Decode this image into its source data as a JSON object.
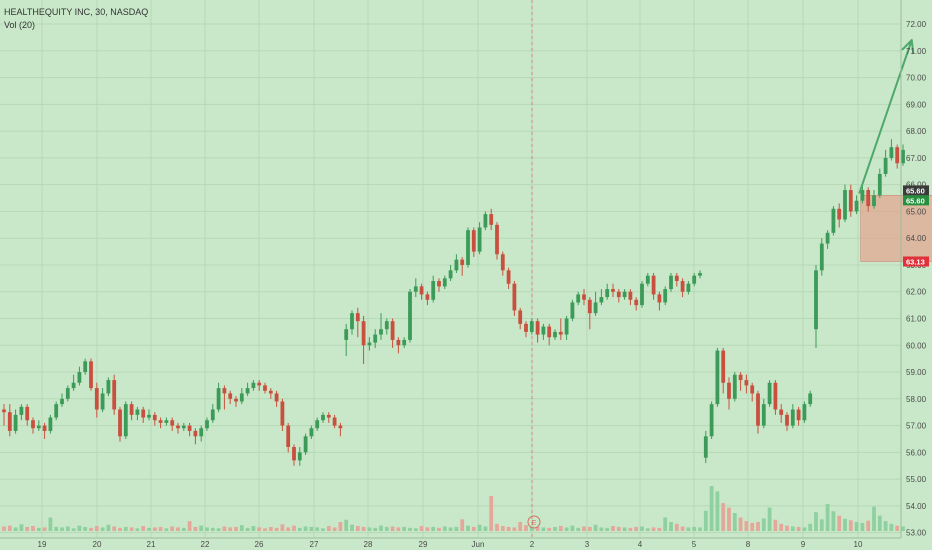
{
  "header": {
    "symbol_line": "HEALTHEQUITY INC, 30, NASDAQ",
    "volume_line": "Vol (20)"
  },
  "colors": {
    "background": "#c9e8c9",
    "up": "#3c9b58",
    "down": "#c9503e",
    "arrow": "#4fa86b",
    "box_fill": "#e0a890",
    "grid": "#b6d8b6",
    "axis_text": "#4a4a4a",
    "price_label_green": "#26903e",
    "price_label_red": "#e0313b",
    "price_label_dark": "#3a3a3a"
  },
  "chart_data": {
    "type": "candlestick",
    "y_range": [
      52.8,
      72.6
    ],
    "y_ticks": [
      "72.00",
      "71.00",
      "70.00",
      "69.00",
      "68.00",
      "67.00",
      "66.00",
      "65.00",
      "64.00",
      "63.00",
      "62.00",
      "61.00",
      "60.00",
      "59.00",
      "58.00",
      "57.00",
      "56.00",
      "55.00",
      "54.00",
      "53.00"
    ],
    "x_labels": [
      "19",
      "20",
      "21",
      "22",
      "26",
      "27",
      "28",
      "29",
      "Jun",
      "2",
      "3",
      "4",
      "5",
      "8",
      "9",
      "10"
    ],
    "price_labels": [
      {
        "text": "65.60",
        "value": 65.6,
        "style": "dark"
      },
      {
        "text": "65.60",
        "value": 65.6,
        "style": "green"
      },
      {
        "text": "63.13",
        "value": 63.13,
        "style": "red"
      }
    ],
    "event_marker": "E",
    "candles": [
      [
        57.6,
        57.5,
        57.0,
        57.8
      ],
      [
        57.5,
        56.8,
        56.6,
        57.8
      ],
      [
        56.8,
        57.4,
        56.7,
        57.6
      ],
      [
        57.4,
        57.7,
        57.2,
        57.8
      ],
      [
        57.7,
        57.2,
        57.0,
        57.8
      ],
      [
        57.2,
        56.9,
        56.7,
        57.3
      ],
      [
        56.9,
        57.0,
        56.8,
        57.2
      ],
      [
        57.0,
        56.8,
        56.5,
        57.1
      ],
      [
        56.8,
        57.3,
        56.7,
        57.4
      ],
      [
        57.3,
        57.8,
        57.2,
        57.9
      ],
      [
        57.8,
        58.0,
        57.7,
        58.2
      ],
      [
        58.0,
        58.4,
        57.9,
        58.5
      ],
      [
        58.4,
        58.6,
        58.3,
        58.9
      ],
      [
        58.6,
        59.0,
        58.5,
        59.2
      ],
      [
        59.0,
        59.4,
        58.9,
        59.5
      ],
      [
        59.4,
        58.4,
        58.3,
        59.5
      ],
      [
        58.4,
        57.6,
        57.3,
        58.6
      ],
      [
        57.6,
        58.2,
        57.5,
        58.4
      ],
      [
        58.2,
        58.7,
        58.1,
        58.8
      ],
      [
        58.7,
        57.6,
        57.4,
        58.9
      ],
      [
        57.6,
        56.6,
        56.4,
        57.7
      ],
      [
        56.6,
        57.8,
        56.5,
        57.9
      ],
      [
        57.8,
        57.4,
        57.2,
        57.9
      ],
      [
        57.4,
        57.6,
        57.2,
        57.7
      ],
      [
        57.6,
        57.3,
        57.1,
        57.7
      ],
      [
        57.3,
        57.4,
        57.2,
        57.6
      ],
      [
        57.4,
        57.2,
        57.0,
        57.5
      ],
      [
        57.2,
        57.1,
        56.9,
        57.3
      ],
      [
        57.1,
        57.2,
        57.0,
        57.3
      ],
      [
        57.2,
        57.0,
        56.8,
        57.3
      ],
      [
        57.0,
        56.9,
        56.7,
        57.1
      ],
      [
        56.9,
        57.0,
        56.8,
        57.1
      ],
      [
        57.0,
        56.8,
        56.6,
        57.1
      ],
      [
        56.8,
        56.6,
        56.3,
        56.9
      ],
      [
        56.6,
        56.9,
        56.4,
        57.0
      ],
      [
        56.9,
        57.2,
        56.8,
        57.3
      ],
      [
        57.2,
        57.6,
        57.1,
        57.8
      ],
      [
        57.6,
        58.4,
        57.5,
        58.6
      ],
      [
        58.4,
        58.2,
        57.6,
        58.5
      ],
      [
        58.2,
        58.0,
        57.8,
        58.3
      ],
      [
        58.0,
        57.9,
        57.7,
        58.1
      ],
      [
        57.9,
        58.2,
        57.8,
        58.4
      ],
      [
        58.2,
        58.4,
        58.1,
        58.6
      ],
      [
        58.4,
        58.6,
        58.3,
        58.7
      ],
      [
        58.6,
        58.5,
        58.3,
        58.7
      ],
      [
        58.5,
        58.3,
        58.2,
        58.6
      ],
      [
        58.3,
        58.2,
        58.0,
        58.4
      ],
      [
        58.2,
        57.9,
        57.7,
        58.3
      ],
      [
        57.9,
        57.0,
        56.8,
        58.0
      ],
      [
        57.0,
        56.2,
        56.0,
        57.1
      ],
      [
        56.2,
        55.7,
        55.5,
        56.3
      ],
      [
        55.7,
        56.0,
        55.5,
        56.2
      ],
      [
        56.0,
        56.6,
        55.9,
        56.7
      ],
      [
        56.6,
        56.9,
        56.5,
        57.0
      ],
      [
        56.9,
        57.2,
        56.8,
        57.3
      ],
      [
        57.2,
        57.4,
        57.1,
        57.5
      ],
      [
        57.4,
        57.3,
        57.1,
        57.5
      ],
      [
        57.3,
        57.0,
        56.9,
        57.4
      ],
      [
        57.0,
        56.9,
        56.6,
        57.1
      ],
      [
        60.2,
        60.6,
        59.6,
        60.8
      ],
      [
        60.6,
        61.2,
        60.4,
        61.3
      ],
      [
        61.2,
        60.9,
        60.3,
        61.4
      ],
      [
        60.9,
        60.0,
        59.3,
        61.1
      ],
      [
        60.0,
        60.1,
        59.8,
        60.3
      ],
      [
        60.1,
        60.4,
        59.9,
        60.6
      ],
      [
        60.4,
        60.6,
        60.2,
        61.2
      ],
      [
        60.6,
        60.9,
        60.4,
        61.0
      ],
      [
        60.9,
        60.2,
        59.9,
        61.0
      ],
      [
        60.2,
        60.0,
        59.7,
        60.3
      ],
      [
        60.0,
        60.2,
        59.9,
        60.3
      ],
      [
        60.2,
        62.0,
        60.1,
        62.1
      ],
      [
        62.0,
        62.2,
        61.8,
        62.5
      ],
      [
        62.2,
        61.9,
        61.7,
        62.3
      ],
      [
        61.9,
        61.7,
        61.5,
        62.0
      ],
      [
        61.7,
        62.4,
        61.6,
        62.6
      ],
      [
        62.4,
        62.2,
        62.0,
        62.5
      ],
      [
        62.2,
        62.5,
        62.1,
        62.6
      ],
      [
        62.5,
        62.8,
        62.4,
        63.0
      ],
      [
        62.8,
        63.2,
        62.7,
        63.4
      ],
      [
        63.2,
        63.0,
        62.6,
        63.3
      ],
      [
        63.0,
        64.3,
        62.9,
        64.4
      ],
      [
        64.3,
        63.5,
        63.3,
        64.4
      ],
      [
        63.5,
        64.4,
        63.4,
        64.6
      ],
      [
        64.4,
        64.9,
        64.3,
        65.0
      ],
      [
        64.9,
        64.5,
        64.3,
        65.1
      ],
      [
        64.5,
        63.4,
        63.2,
        64.6
      ],
      [
        63.4,
        62.8,
        62.6,
        63.5
      ],
      [
        62.8,
        62.3,
        62.1,
        62.9
      ],
      [
        62.3,
        61.3,
        61.1,
        62.4
      ],
      [
        61.3,
        60.8,
        60.6,
        61.4
      ],
      [
        60.8,
        60.5,
        60.3,
        60.9
      ],
      [
        60.5,
        60.9,
        60.4,
        61.0
      ],
      [
        60.9,
        60.4,
        60.1,
        61.0
      ],
      [
        60.4,
        60.7,
        60.2,
        60.8
      ],
      [
        60.7,
        60.3,
        60.0,
        60.8
      ],
      [
        60.3,
        60.5,
        60.2,
        60.6
      ],
      [
        60.5,
        60.4,
        60.2,
        61.0
      ],
      [
        60.4,
        61.0,
        60.2,
        61.1
      ],
      [
        61.0,
        61.6,
        60.9,
        61.7
      ],
      [
        61.6,
        61.9,
        61.5,
        62.0
      ],
      [
        61.9,
        61.7,
        61.5,
        62.1
      ],
      [
        61.7,
        61.2,
        60.6,
        61.8
      ],
      [
        61.2,
        61.6,
        61.1,
        62.0
      ],
      [
        61.6,
        61.8,
        61.5,
        62.1
      ],
      [
        61.8,
        62.1,
        61.7,
        62.3
      ],
      [
        62.1,
        62.0,
        61.8,
        62.3
      ],
      [
        62.0,
        61.8,
        61.6,
        62.1
      ],
      [
        61.8,
        62.0,
        61.7,
        62.1
      ],
      [
        62.0,
        61.7,
        61.5,
        62.1
      ],
      [
        61.7,
        61.5,
        61.3,
        61.8
      ],
      [
        61.5,
        62.3,
        61.4,
        62.4
      ],
      [
        62.3,
        62.6,
        62.2,
        62.7
      ],
      [
        62.6,
        61.9,
        61.7,
        62.7
      ],
      [
        61.9,
        61.6,
        61.3,
        62.0
      ],
      [
        61.6,
        62.1,
        61.5,
        62.2
      ],
      [
        62.1,
        62.6,
        62.0,
        62.7
      ],
      [
        62.6,
        62.4,
        62.2,
        62.7
      ],
      [
        62.4,
        62.0,
        61.8,
        62.5
      ],
      [
        62.0,
        62.3,
        61.9,
        62.4
      ],
      [
        62.3,
        62.6,
        62.2,
        62.7
      ],
      [
        62.6,
        62.7,
        62.5,
        62.8
      ],
      [
        55.8,
        56.6,
        55.6,
        56.8
      ],
      [
        56.6,
        57.8,
        56.5,
        57.9
      ],
      [
        57.8,
        59.8,
        57.7,
        59.9
      ],
      [
        59.8,
        58.6,
        58.2,
        59.9
      ],
      [
        58.6,
        58.0,
        57.6,
        58.8
      ],
      [
        58.0,
        58.9,
        57.9,
        59.0
      ],
      [
        58.9,
        58.7,
        58.3,
        59.0
      ],
      [
        58.7,
        58.5,
        58.2,
        58.9
      ],
      [
        58.5,
        58.2,
        57.9,
        58.6
      ],
      [
        58.2,
        57.0,
        56.7,
        58.3
      ],
      [
        57.0,
        57.8,
        56.9,
        58.0
      ],
      [
        57.8,
        58.6,
        57.7,
        58.7
      ],
      [
        58.6,
        57.6,
        57.4,
        58.7
      ],
      [
        57.6,
        57.4,
        57.1,
        57.8
      ],
      [
        57.4,
        57.0,
        56.8,
        57.5
      ],
      [
        57.0,
        57.6,
        56.9,
        57.8
      ],
      [
        57.6,
        57.2,
        57.0,
        57.7
      ],
      [
        57.2,
        57.8,
        57.1,
        57.9
      ],
      [
        57.8,
        58.2,
        57.7,
        58.3
      ],
      [
        60.6,
        62.8,
        59.9,
        63.0
      ],
      [
        62.8,
        63.8,
        62.6,
        64.0
      ],
      [
        63.8,
        64.2,
        63.6,
        64.3
      ],
      [
        64.2,
        65.1,
        64.1,
        65.2
      ],
      [
        65.1,
        64.7,
        64.4,
        65.3
      ],
      [
        64.7,
        65.8,
        64.6,
        66.0
      ],
      [
        65.8,
        65.0,
        64.8,
        66.0
      ],
      [
        65.0,
        65.4,
        64.9,
        65.6
      ],
      [
        65.4,
        65.8,
        65.3,
        66.0
      ],
      [
        65.8,
        65.2,
        65.0,
        65.9
      ],
      [
        65.2,
        65.6,
        65.1,
        65.8
      ],
      [
        65.6,
        66.4,
        65.5,
        66.6
      ],
      [
        66.4,
        67.0,
        66.3,
        67.3
      ],
      [
        67.0,
        67.4,
        66.9,
        67.7
      ],
      [
        67.4,
        66.8,
        66.6,
        67.5
      ],
      [
        66.8,
        67.3,
        66.7,
        67.5
      ]
    ],
    "volume_pct": [
      0.1,
      0.12,
      0.08,
      0.15,
      0.09,
      0.11,
      0.07,
      0.08,
      0.3,
      0.09,
      0.08,
      0.1,
      0.06,
      0.12,
      0.09,
      0.07,
      0.11,
      0.08,
      0.14,
      0.1,
      0.07,
      0.09,
      0.08,
      0.06,
      0.11,
      0.07,
      0.08,
      0.09,
      0.06,
      0.1,
      0.08,
      0.07,
      0.22,
      0.09,
      0.12,
      0.08,
      0.07,
      0.06,
      0.1,
      0.08,
      0.09,
      0.13,
      0.07,
      0.11,
      0.08,
      0.06,
      0.09,
      0.07,
      0.15,
      0.08,
      0.12,
      0.07,
      0.1,
      0.09,
      0.08,
      0.06,
      0.11,
      0.08,
      0.2,
      0.25,
      0.14,
      0.11,
      0.09,
      0.08,
      0.07,
      0.12,
      0.09,
      0.1,
      0.08,
      0.09,
      0.07,
      0.06,
      0.11,
      0.08,
      0.09,
      0.07,
      0.1,
      0.08,
      0.09,
      0.26,
      0.12,
      0.09,
      0.14,
      0.1,
      0.78,
      0.16,
      0.11,
      0.09,
      0.08,
      0.2,
      0.13,
      0.1,
      0.09,
      0.08,
      0.07,
      0.09,
      0.11,
      0.08,
      0.12,
      0.07,
      0.1,
      0.09,
      0.14,
      0.08,
      0.07,
      0.11,
      0.09,
      0.08,
      0.07,
      0.09,
      0.1,
      0.06,
      0.08,
      0.07,
      0.3,
      0.2,
      0.16,
      0.1,
      0.08,
      0.09,
      0.08,
      0.45,
      1.0,
      0.88,
      0.62,
      0.52,
      0.4,
      0.3,
      0.22,
      0.18,
      0.2,
      0.28,
      0.52,
      0.25,
      0.16,
      0.12,
      0.1,
      0.09,
      0.08,
      0.16,
      0.42,
      0.26,
      0.6,
      0.44,
      0.34,
      0.27,
      0.24,
      0.2,
      0.18,
      0.23,
      0.54,
      0.34,
      0.22,
      0.16,
      0.12,
      0.1
    ],
    "annotations": [
      {
        "type": "arrow",
        "from": [
          147.5,
          65.7
        ],
        "to": [
          156.5,
          71.4
        ]
      },
      {
        "type": "rectangle",
        "x_from": 147.7,
        "x_to": 170.8,
        "y_from": 63.13,
        "y_to": 65.6
      }
    ]
  }
}
